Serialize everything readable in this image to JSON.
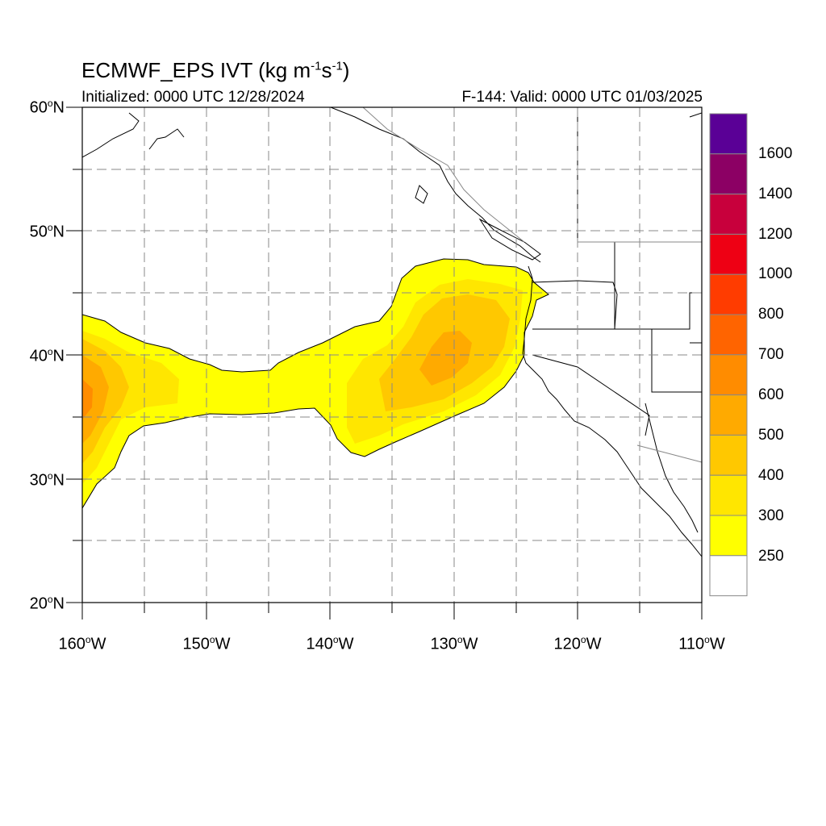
{
  "header": {
    "title": "ECMWF_EPS IVT (kg m",
    "title_exp1": "-1",
    "title_mid": "s",
    "title_exp2": "-1",
    "title_end": ")",
    "initialized": "Initialized: 0000 UTC 12/28/2024",
    "valid": "F-144: Valid: 0000 UTC 01/03/2025"
  },
  "axes": {
    "lat_labels": [
      {
        "text": "60",
        "hemi": "N"
      },
      {
        "text": "50",
        "hemi": "N"
      },
      {
        "text": "40",
        "hemi": "N"
      },
      {
        "text": "30",
        "hemi": "N"
      },
      {
        "text": "20",
        "hemi": "N"
      }
    ],
    "lon_labels": [
      {
        "text": "160",
        "hemi": "W"
      },
      {
        "text": "150",
        "hemi": "W"
      },
      {
        "text": "140",
        "hemi": "W"
      },
      {
        "text": "130",
        "hemi": "W"
      },
      {
        "text": "120",
        "hemi": "W"
      },
      {
        "text": "110",
        "hemi": "W"
      }
    ],
    "lat_range": [
      20,
      60
    ],
    "lon_range": [
      -160,
      -110
    ],
    "grid": "dashed every 5 degrees"
  },
  "colorbar": {
    "labels": [
      "1600",
      "1400",
      "1200",
      "1000",
      "800",
      "700",
      "600",
      "500",
      "400",
      "300",
      "250"
    ],
    "colors": [
      "#5a0096",
      "#8c0064",
      "#c8003c",
      "#ee0014",
      "#ff3c00",
      "#ff6400",
      "#ff8c00",
      "#ffaa00",
      "#ffc800",
      "#ffe600",
      "#ffff00",
      "#ffffff"
    ]
  },
  "map": {
    "field": "IVT",
    "max_region": "~40N 130W and ~37N 160W"
  }
}
